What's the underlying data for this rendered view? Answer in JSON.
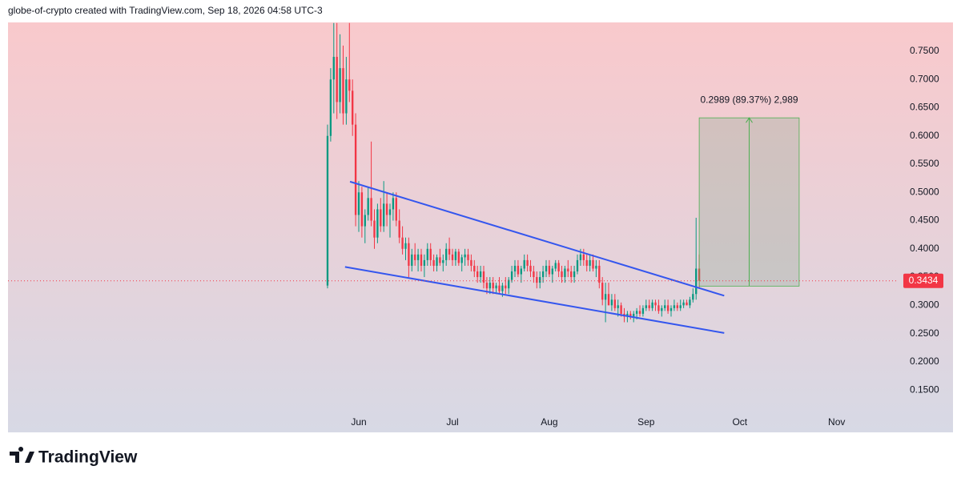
{
  "header": "globe-of-crypto created with TradingView.com, Sep 18, 2026 04:58 UTC-3",
  "footer": {
    "brand": "TradingView"
  },
  "chart_data": {
    "type": "candlestick",
    "up_color": "#089981",
    "down_color": "#f23645",
    "xlim": [
      -112.3,
      172.3
    ],
    "xticks": [
      {
        "value": 0,
        "label": "Jun"
      },
      {
        "value": 30,
        "label": "Jul"
      },
      {
        "value": 61,
        "label": "Aug"
      },
      {
        "value": 92,
        "label": "Sep"
      },
      {
        "value": 122,
        "label": "Oct"
      },
      {
        "value": 153,
        "label": "Nov"
      }
    ],
    "ylim": [
      0.075,
      0.801
    ],
    "yticks": [
      {
        "value": 0.15,
        "label": "0.1500"
      },
      {
        "value": 0.2,
        "label": "0.2000"
      },
      {
        "value": 0.25,
        "label": "0.2500"
      },
      {
        "value": 0.3,
        "label": "0.3000"
      },
      {
        "value": 0.35,
        "label": "0.3500"
      },
      {
        "value": 0.4,
        "label": "0.4000"
      },
      {
        "value": 0.45,
        "label": "0.4500"
      },
      {
        "value": 0.5,
        "label": "0.5000"
      },
      {
        "value": 0.55,
        "label": "0.5500"
      },
      {
        "value": 0.6,
        "label": "0.6000"
      },
      {
        "value": 0.65,
        "label": "0.6500"
      },
      {
        "value": 0.7,
        "label": "0.7000"
      },
      {
        "value": 0.75,
        "label": "0.7500"
      }
    ],
    "x": [
      -10,
      -9,
      -8,
      -7,
      -6,
      -5,
      -4,
      -3,
      -2,
      -1,
      0,
      1,
      2,
      3,
      4,
      5,
      6,
      7,
      8,
      9,
      10,
      11,
      12,
      13,
      14,
      15,
      16,
      17,
      18,
      19,
      20,
      21,
      22,
      23,
      24,
      25,
      26,
      27,
      28,
      29,
      30,
      31,
      32,
      33,
      34,
      35,
      36,
      37,
      38,
      39,
      40,
      41,
      42,
      43,
      44,
      45,
      46,
      47,
      48,
      49,
      50,
      51,
      52,
      53,
      54,
      55,
      56,
      57,
      58,
      59,
      60,
      61,
      62,
      63,
      64,
      65,
      66,
      67,
      68,
      69,
      70,
      71,
      72,
      73,
      74,
      75,
      76,
      77,
      78,
      79,
      80,
      81,
      82,
      83,
      84,
      85,
      86,
      87,
      88,
      89,
      90,
      91,
      92,
      93,
      94,
      95,
      96,
      97,
      98,
      99,
      100,
      101,
      102,
      103,
      104,
      105,
      106,
      107,
      108,
      109
    ],
    "candles": [
      [
        0.335,
        0.62,
        0.33,
        0.6
      ],
      [
        0.6,
        0.72,
        0.59,
        0.7
      ],
      [
        0.7,
        0.8,
        0.64,
        0.74
      ],
      [
        0.74,
        0.8,
        0.63,
        0.66
      ],
      [
        0.66,
        0.78,
        0.64,
        0.72
      ],
      [
        0.72,
        0.76,
        0.62,
        0.64
      ],
      [
        0.64,
        0.74,
        0.62,
        0.7
      ],
      [
        0.7,
        0.8,
        0.66,
        0.68
      ],
      [
        0.68,
        0.7,
        0.6,
        0.62
      ],
      [
        0.62,
        0.64,
        0.44,
        0.46
      ],
      [
        0.46,
        0.52,
        0.43,
        0.5
      ],
      [
        0.5,
        0.51,
        0.42,
        0.44
      ],
      [
        0.44,
        0.47,
        0.41,
        0.46
      ],
      [
        0.46,
        0.51,
        0.45,
        0.49
      ],
      [
        0.49,
        0.59,
        0.44,
        0.45
      ],
      [
        0.45,
        0.47,
        0.4,
        0.42
      ],
      [
        0.42,
        0.48,
        0.41,
        0.47
      ],
      [
        0.47,
        0.49,
        0.43,
        0.44
      ],
      [
        0.44,
        0.52,
        0.43,
        0.48
      ],
      [
        0.48,
        0.5,
        0.44,
        0.46
      ],
      [
        0.46,
        0.48,
        0.42,
        0.47
      ],
      [
        0.47,
        0.5,
        0.45,
        0.49
      ],
      [
        0.49,
        0.5,
        0.44,
        0.45
      ],
      [
        0.45,
        0.47,
        0.41,
        0.42
      ],
      [
        0.42,
        0.44,
        0.39,
        0.4
      ],
      [
        0.4,
        0.42,
        0.38,
        0.41
      ],
      [
        0.41,
        0.42,
        0.35,
        0.37
      ],
      [
        0.37,
        0.4,
        0.36,
        0.39
      ],
      [
        0.39,
        0.41,
        0.37,
        0.38
      ],
      [
        0.38,
        0.4,
        0.36,
        0.39
      ],
      [
        0.39,
        0.4,
        0.36,
        0.37
      ],
      [
        0.37,
        0.39,
        0.35,
        0.38
      ],
      [
        0.38,
        0.41,
        0.37,
        0.4
      ],
      [
        0.4,
        0.41,
        0.37,
        0.38
      ],
      [
        0.38,
        0.39,
        0.36,
        0.37
      ],
      [
        0.37,
        0.39,
        0.36,
        0.385
      ],
      [
        0.385,
        0.4,
        0.37,
        0.375
      ],
      [
        0.375,
        0.39,
        0.36,
        0.38
      ],
      [
        0.38,
        0.41,
        0.37,
        0.4
      ],
      [
        0.4,
        0.42,
        0.38,
        0.39
      ],
      [
        0.39,
        0.4,
        0.37,
        0.38
      ],
      [
        0.38,
        0.4,
        0.37,
        0.395
      ],
      [
        0.395,
        0.4,
        0.37,
        0.375
      ],
      [
        0.375,
        0.39,
        0.36,
        0.385
      ],
      [
        0.385,
        0.4,
        0.37,
        0.39
      ],
      [
        0.39,
        0.4,
        0.37,
        0.38
      ],
      [
        0.38,
        0.39,
        0.36,
        0.37
      ],
      [
        0.37,
        0.38,
        0.35,
        0.36
      ],
      [
        0.36,
        0.37,
        0.34,
        0.35
      ],
      [
        0.35,
        0.37,
        0.34,
        0.36
      ],
      [
        0.36,
        0.37,
        0.33,
        0.34
      ],
      [
        0.34,
        0.35,
        0.32,
        0.33
      ],
      [
        0.33,
        0.35,
        0.32,
        0.34
      ],
      [
        0.34,
        0.35,
        0.32,
        0.33
      ],
      [
        0.33,
        0.34,
        0.32,
        0.335
      ],
      [
        0.335,
        0.35,
        0.32,
        0.325
      ],
      [
        0.325,
        0.34,
        0.315,
        0.335
      ],
      [
        0.335,
        0.35,
        0.32,
        0.33
      ],
      [
        0.33,
        0.35,
        0.32,
        0.345
      ],
      [
        0.345,
        0.37,
        0.34,
        0.36
      ],
      [
        0.36,
        0.38,
        0.35,
        0.37
      ],
      [
        0.37,
        0.38,
        0.35,
        0.355
      ],
      [
        0.355,
        0.37,
        0.34,
        0.365
      ],
      [
        0.365,
        0.39,
        0.36,
        0.38
      ],
      [
        0.38,
        0.39,
        0.36,
        0.37
      ],
      [
        0.37,
        0.38,
        0.35,
        0.36
      ],
      [
        0.36,
        0.37,
        0.34,
        0.35
      ],
      [
        0.35,
        0.36,
        0.33,
        0.34
      ],
      [
        0.34,
        0.36,
        0.33,
        0.35
      ],
      [
        0.35,
        0.37,
        0.34,
        0.36
      ],
      [
        0.36,
        0.38,
        0.35,
        0.37
      ],
      [
        0.37,
        0.38,
        0.35,
        0.355
      ],
      [
        0.355,
        0.37,
        0.34,
        0.365
      ],
      [
        0.365,
        0.38,
        0.36,
        0.375
      ],
      [
        0.375,
        0.38,
        0.35,
        0.36
      ],
      [
        0.36,
        0.37,
        0.34,
        0.35
      ],
      [
        0.35,
        0.37,
        0.34,
        0.365
      ],
      [
        0.365,
        0.38,
        0.35,
        0.36
      ],
      [
        0.36,
        0.37,
        0.34,
        0.35
      ],
      [
        0.35,
        0.37,
        0.34,
        0.36
      ],
      [
        0.36,
        0.39,
        0.355,
        0.38
      ],
      [
        0.38,
        0.4,
        0.37,
        0.39
      ],
      [
        0.39,
        0.4,
        0.37,
        0.38
      ],
      [
        0.38,
        0.39,
        0.36,
        0.37
      ],
      [
        0.37,
        0.39,
        0.36,
        0.38
      ],
      [
        0.38,
        0.39,
        0.36,
        0.365
      ],
      [
        0.365,
        0.38,
        0.35,
        0.37
      ],
      [
        0.37,
        0.38,
        0.33,
        0.34
      ],
      [
        0.34,
        0.35,
        0.3,
        0.31
      ],
      [
        0.31,
        0.34,
        0.27,
        0.32
      ],
      [
        0.32,
        0.34,
        0.3,
        0.3
      ],
      [
        0.3,
        0.32,
        0.29,
        0.31
      ],
      [
        0.31,
        0.32,
        0.29,
        0.295
      ],
      [
        0.295,
        0.31,
        0.28,
        0.3
      ],
      [
        0.3,
        0.305,
        0.28,
        0.285
      ],
      [
        0.285,
        0.295,
        0.27,
        0.28
      ],
      [
        0.28,
        0.29,
        0.27,
        0.285
      ],
      [
        0.285,
        0.29,
        0.275,
        0.28
      ],
      [
        0.28,
        0.29,
        0.27,
        0.285
      ],
      [
        0.285,
        0.295,
        0.275,
        0.29
      ],
      [
        0.29,
        0.3,
        0.28,
        0.285
      ],
      [
        0.285,
        0.3,
        0.28,
        0.295
      ],
      [
        0.295,
        0.31,
        0.29,
        0.3
      ],
      [
        0.3,
        0.31,
        0.29,
        0.295
      ],
      [
        0.295,
        0.31,
        0.29,
        0.305
      ],
      [
        0.305,
        0.31,
        0.29,
        0.3
      ],
      [
        0.3,
        0.31,
        0.285,
        0.29
      ],
      [
        0.29,
        0.3,
        0.28,
        0.295
      ],
      [
        0.295,
        0.31,
        0.29,
        0.3
      ],
      [
        0.3,
        0.31,
        0.285,
        0.29
      ],
      [
        0.29,
        0.3,
        0.28,
        0.295
      ],
      [
        0.295,
        0.31,
        0.29,
        0.3
      ],
      [
        0.3,
        0.305,
        0.29,
        0.295
      ],
      [
        0.295,
        0.31,
        0.29,
        0.3
      ],
      [
        0.3,
        0.31,
        0.295,
        0.305
      ],
      [
        0.305,
        0.31,
        0.3,
        0.3
      ],
      [
        0.3,
        0.315,
        0.295,
        0.31
      ],
      [
        0.31,
        0.33,
        0.305,
        0.32
      ],
      [
        0.32,
        0.455,
        0.31,
        0.365
      ],
      [
        0.365,
        0.39,
        0.33,
        0.3434
      ]
    ],
    "trendlines": [
      {
        "color": "#3456ee",
        "x": [
          -2.8,
          117
        ],
        "y": [
          0.519,
          0.317
        ]
      },
      {
        "color": "#3456ee",
        "x": [
          -4.4,
          117
        ],
        "y": [
          0.368,
          0.251
        ]
      }
    ],
    "measure": {
      "x": [
        109,
        141
      ],
      "y": [
        0.334,
        0.632
      ],
      "label": "0.2989 (89.37%) 2,989"
    },
    "last_price": 0.3434
  }
}
